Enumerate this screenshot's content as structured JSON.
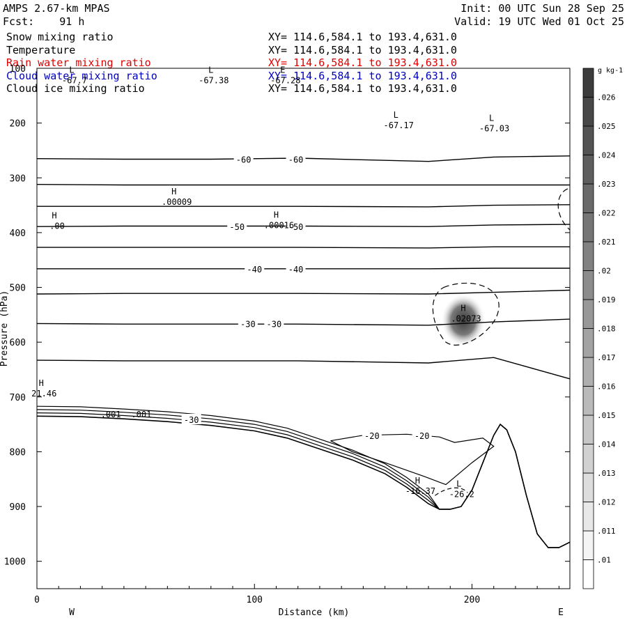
{
  "header": {
    "model": "AMPS 2.67-km MPAS",
    "fcst": "Fcst:    91 h",
    "init": "Init: 00 UTC Sun 28 Sep 25",
    "valid": "Valid: 19 UTC Wed 01 Oct 25"
  },
  "fields": [
    {
      "name": "Snow mixing ratio",
      "xy": "XY= 114.6,584.1 to 193.4,631.0",
      "color": "#000000"
    },
    {
      "name": "Temperature",
      "xy": "XY= 114.6,584.1 to 193.4,631.0",
      "color": "#000000"
    },
    {
      "name": "Rain water mixing ratio",
      "xy": "XY= 114.6,584.1 to 193.4,631.0",
      "color": "#e00000"
    },
    {
      "name": "Cloud water mixing ratio",
      "xy": "XY= 114.6,584.1 to 193.4,631.0",
      "color": "#0000c0"
    },
    {
      "name": "Cloud ice mixing ratio",
      "xy": "XY= 114.6,584.1 to 193.4,631.0",
      "color": "#000000"
    }
  ],
  "chart_data": {
    "type": "contour cross-section",
    "xlabel": "Distance (km)",
    "ylabel": "Pressure (hPa)",
    "xlim": [
      0,
      245
    ],
    "ylim": [
      100,
      1050
    ],
    "x_ticks": [
      0,
      100,
      200
    ],
    "y_ticks": [
      100,
      200,
      300,
      400,
      500,
      600,
      700,
      800,
      900,
      1000
    ],
    "west_label": "W",
    "east_label": "E",
    "colorbar": {
      "unit": "g kg-1",
      "levels": [
        ".01",
        ".011",
        ".012",
        ".013",
        ".014",
        ".015",
        ".016",
        ".017",
        ".018",
        ".019",
        ".02",
        ".021",
        ".022",
        ".023",
        ".024",
        ".025",
        ".026"
      ]
    },
    "temperature_isotherms": [
      {
        "p": [
          265,
          266,
          266,
          264,
          270,
          262,
          260
        ]
      },
      {
        "p": [
          312,
          313,
          313,
          313,
          313,
          313,
          313
        ]
      },
      {
        "p": [
          352,
          352,
          352,
          352,
          353,
          350,
          349
        ]
      },
      {
        "p": [
          389,
          388,
          388,
          388,
          389,
          386,
          385
        ]
      },
      {
        "p": [
          427,
          427,
          427,
          427,
          428,
          426,
          426
        ]
      },
      {
        "p": [
          466,
          466,
          466,
          466,
          466,
          465,
          465
        ]
      },
      {
        "p": [
          512,
          511,
          511,
          511,
          512,
          509,
          505
        ]
      },
      {
        "p": [
          566,
          567,
          567,
          567,
          569,
          563,
          558
        ]
      },
      {
        "p": [
          633,
          634,
          634,
          634,
          638,
          628,
          667
        ]
      }
    ],
    "isotherm_x": [
      0,
      40,
      80,
      120,
      180,
      210,
      245
    ],
    "contour_labels": [
      {
        "text": "-60",
        "x": 95,
        "p": 266
      },
      {
        "text": "-60",
        "x": 119,
        "p": 266
      },
      {
        "text": "-50",
        "x": 92,
        "p": 389
      },
      {
        "text": "-50",
        "x": 119,
        "p": 389
      },
      {
        "text": "-40",
        "x": 100,
        "p": 466
      },
      {
        "text": "-40",
        "x": 119,
        "p": 466
      },
      {
        "text": "-30",
        "x": 97,
        "p": 566
      },
      {
        "text": "-30",
        "x": 109,
        "p": 566
      },
      {
        "text": "-30",
        "x": 71,
        "p": 741
      },
      {
        "text": "-20",
        "x": 154,
        "p": 770
      },
      {
        "text": "-20",
        "x": 177,
        "p": 770
      }
    ],
    "extrema": [
      {
        "mark": "L",
        "value": "-67.7",
        "x": 16,
        "p": 108
      },
      {
        "mark": "L",
        "value": "-67.38",
        "x": 80,
        "p": 108
      },
      {
        "mark": "E",
        "value": "-67.28",
        "x": 113,
        "p": 108
      },
      {
        "mark": "L",
        "value": "-67.17",
        "x": 165,
        "p": 190
      },
      {
        "mark": "L",
        "value": "-67.03",
        "x": 209,
        "p": 196
      },
      {
        "mark": "H",
        "value": ".00009",
        "x": 63,
        "p": 330
      },
      {
        "mark": "H",
        "value": ".00",
        "x": 8,
        "p": 374
      },
      {
        "mark": "H",
        "value": ".00016",
        "x": 110,
        "p": 373
      },
      {
        "mark": "H",
        "value": ".02073",
        "x": 196,
        "p": 543
      },
      {
        "mark": "H",
        "value": "21.46",
        "x": 2,
        "p": 680
      },
      {
        "mark": "H",
        "value": "-16.37",
        "x": 175,
        "p": 858
      },
      {
        "mark": "L",
        "value": "-26.2",
        "x": 194,
        "p": 864
      }
    ],
    "small_labels": [
      {
        "text": ".001",
        "x": 34,
        "p": 737
      },
      {
        "text": ".001",
        "x": 48,
        "p": 737
      }
    ],
    "terrain_x": [
      0,
      20,
      40,
      60,
      80,
      100,
      115,
      130,
      145,
      160,
      170,
      180,
      185,
      190,
      195,
      200,
      205,
      210,
      213,
      216,
      220,
      225,
      230,
      235,
      240,
      245
    ],
    "terrain_p": [
      735,
      736,
      740,
      745,
      752,
      762,
      775,
      795,
      815,
      840,
      865,
      895,
      905,
      905,
      900,
      870,
      820,
      770,
      750,
      760,
      800,
      880,
      950,
      975,
      975,
      965
    ],
    "snow_max_location": {
      "x": 196,
      "p": 560
    }
  }
}
